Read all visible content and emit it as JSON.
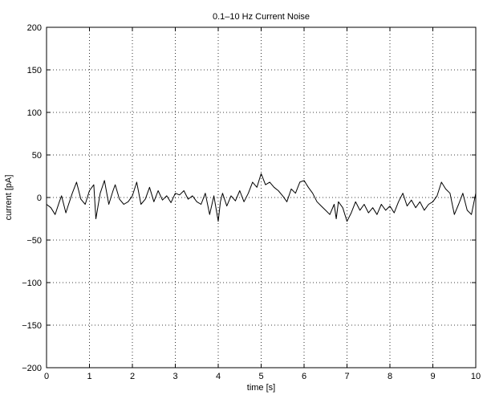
{
  "chart_data": {
    "type": "line",
    "title": "0.1–10 Hz Current Noise",
    "xlabel": "time [s]",
    "ylabel": "current [pA]",
    "xlim": [
      0,
      10
    ],
    "ylim": [
      -200,
      200
    ],
    "x_ticks": [
      0,
      1,
      2,
      3,
      4,
      5,
      6,
      7,
      8,
      9,
      10
    ],
    "x_tick_labels": [
      "0",
      "1",
      "2",
      "3",
      "4",
      "5",
      "6",
      "7",
      "8",
      "9",
      "10"
    ],
    "y_ticks": [
      -200,
      -150,
      -100,
      -50,
      0,
      50,
      100,
      150,
      200
    ],
    "y_tick_labels": [
      "−200",
      "−150",
      "−100",
      "−50",
      "0",
      "50",
      "100",
      "150",
      "200"
    ],
    "grid": true,
    "grid_style": "dotted",
    "line_color": "#000000",
    "series": [
      {
        "x": [
          0,
          0.1,
          0.2,
          0.3,
          0.35,
          0.45,
          0.5,
          0.6,
          0.7,
          0.8,
          0.9,
          1.0,
          1.1,
          1.15,
          1.25,
          1.35,
          1.45,
          1.55,
          1.6,
          1.7,
          1.8,
          1.9,
          2.0,
          2.1,
          2.2,
          2.3,
          2.4,
          2.5,
          2.6,
          2.7,
          2.8,
          2.9,
          3.0,
          3.1,
          3.2,
          3.3,
          3.4,
          3.5,
          3.6,
          3.7,
          3.8,
          3.9,
          4.0,
          4.05,
          4.1,
          4.2,
          4.3,
          4.4,
          4.5,
          4.6,
          4.7,
          4.8,
          4.9,
          5.0,
          5.1,
          5.2,
          5.3,
          5.4,
          5.5,
          5.6,
          5.7,
          5.8,
          5.9,
          6.0,
          6.1,
          6.2,
          6.3,
          6.4,
          6.5,
          6.6,
          6.7,
          6.75,
          6.8,
          6.9,
          7.0,
          7.1,
          7.2,
          7.3,
          7.4,
          7.5,
          7.6,
          7.7,
          7.8,
          7.9,
          8.0,
          8.1,
          8.2,
          8.3,
          8.4,
          8.5,
          8.6,
          8.7,
          8.8,
          8.9,
          9.0,
          9.1,
          9.2,
          9.3,
          9.4,
          9.5,
          9.6,
          9.7,
          9.8,
          9.9,
          10.0
        ],
        "y": [
          -8,
          -12,
          -20,
          -5,
          2,
          -18,
          -10,
          5,
          18,
          -2,
          -8,
          8,
          15,
          -25,
          5,
          20,
          -8,
          8,
          15,
          -2,
          -8,
          -5,
          2,
          18,
          -8,
          -2,
          12,
          -5,
          8,
          -3,
          2,
          -6,
          5,
          3,
          8,
          -2,
          2,
          -5,
          -8,
          5,
          -20,
          2,
          -28,
          -5,
          5,
          -10,
          2,
          -4,
          8,
          -5,
          5,
          18,
          12,
          28,
          15,
          18,
          12,
          8,
          2,
          -5,
          10,
          5,
          18,
          20,
          12,
          5,
          -5,
          -10,
          -15,
          -20,
          -8,
          -25,
          -5,
          -12,
          -28,
          -18,
          -5,
          -15,
          -8,
          -18,
          -12,
          -20,
          -8,
          -15,
          -10,
          -18,
          -5,
          5,
          -10,
          -3,
          -12,
          -5,
          -15,
          -8,
          -5,
          2,
          18,
          10,
          5,
          -20,
          -8,
          5,
          -15,
          -20,
          5
        ]
      }
    ]
  }
}
